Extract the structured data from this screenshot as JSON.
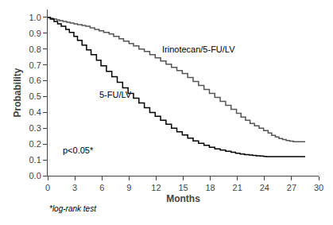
{
  "chart_data": {
    "type": "step",
    "xlabel": "Months",
    "ylabel": "Probability",
    "xlim": [
      0,
      30
    ],
    "ylim": [
      0.0,
      1.05
    ],
    "xticks": [
      0,
      3,
      6,
      9,
      12,
      15,
      18,
      21,
      24,
      27,
      30
    ],
    "yticks": [
      {
        "value": 0.0,
        "label": "0.0"
      },
      0.1,
      0.2,
      0.3,
      0.4,
      0.5,
      0.6,
      0.7,
      0.8,
      0.9,
      {
        "value": 1.0,
        "label": "1.0"
      }
    ],
    "grid": false,
    "series": [
      {
        "color": "#555555",
        "x": [
          0,
          0.3,
          0.6,
          1.0,
          1.3,
          1.7,
          2.1,
          2.5,
          2.9,
          3.3,
          3.8,
          4.2,
          4.7,
          5.2,
          5.7,
          6.2,
          6.8,
          7.3,
          7.9,
          8.4,
          9.0,
          9.5,
          10.1,
          10.7,
          11.3,
          11.9,
          12.5,
          13.1,
          13.7,
          14.3,
          14.9,
          15.5,
          16.1,
          16.7,
          17.3,
          17.9,
          18.5,
          19.1,
          19.7,
          20.3,
          20.9,
          21.4,
          21.9,
          22.4,
          22.9,
          23.4,
          23.9,
          24.4,
          24.8,
          25.2,
          25.6,
          26.0,
          26.4,
          26.8,
          27.2,
          28.5
        ],
        "values": [
          1.0,
          0.995,
          0.99,
          0.985,
          0.98,
          0.975,
          0.97,
          0.965,
          0.96,
          0.955,
          0.95,
          0.945,
          0.935,
          0.925,
          0.915,
          0.905,
          0.895,
          0.88,
          0.865,
          0.85,
          0.835,
          0.82,
          0.8,
          0.785,
          0.765,
          0.745,
          0.725,
          0.705,
          0.685,
          0.665,
          0.645,
          0.62,
          0.595,
          0.57,
          0.545,
          0.52,
          0.495,
          0.47,
          0.445,
          0.42,
          0.395,
          0.37,
          0.35,
          0.33,
          0.315,
          0.3,
          0.285,
          0.27,
          0.255,
          0.245,
          0.235,
          0.228,
          0.222,
          0.218,
          0.215,
          0.215
        ]
      },
      {
        "color": "#000000",
        "x": [
          0,
          0.3,
          0.7,
          1.1,
          1.5,
          2.0,
          2.4,
          2.9,
          3.3,
          3.8,
          4.3,
          4.8,
          5.4,
          5.9,
          6.5,
          7.1,
          7.7,
          8.3,
          8.9,
          9.5,
          10.1,
          10.7,
          11.3,
          11.9,
          12.5,
          13.1,
          13.7,
          14.3,
          14.9,
          15.5,
          16.1,
          16.7,
          17.3,
          17.9,
          18.5,
          19.1,
          19.7,
          20.3,
          20.8,
          21.3,
          21.8,
          22.3,
          22.7,
          23.1,
          23.5,
          23.9,
          24.2,
          24.5,
          28.5
        ],
        "values": [
          1.0,
          0.99,
          0.975,
          0.96,
          0.945,
          0.925,
          0.905,
          0.88,
          0.855,
          0.825,
          0.795,
          0.765,
          0.73,
          0.695,
          0.66,
          0.625,
          0.59,
          0.555,
          0.52,
          0.49,
          0.46,
          0.43,
          0.4,
          0.375,
          0.35,
          0.325,
          0.3,
          0.278,
          0.258,
          0.238,
          0.22,
          0.205,
          0.192,
          0.18,
          0.17,
          0.162,
          0.155,
          0.148,
          0.142,
          0.137,
          0.133,
          0.13,
          0.128,
          0.126,
          0.124,
          0.122,
          0.121,
          0.12,
          0.12
        ]
      }
    ],
    "annotations": [
      {
        "text": "Irinotecan/5-FU/LV",
        "x": 12.5,
        "y": 0.76
      },
      {
        "text": "5-FU/LV",
        "x": 5.5,
        "y": 0.47
      },
      {
        "text": "p<0.05*",
        "x": 1.5,
        "y": 0.12
      }
    ],
    "footnote": "*log-rank test"
  }
}
